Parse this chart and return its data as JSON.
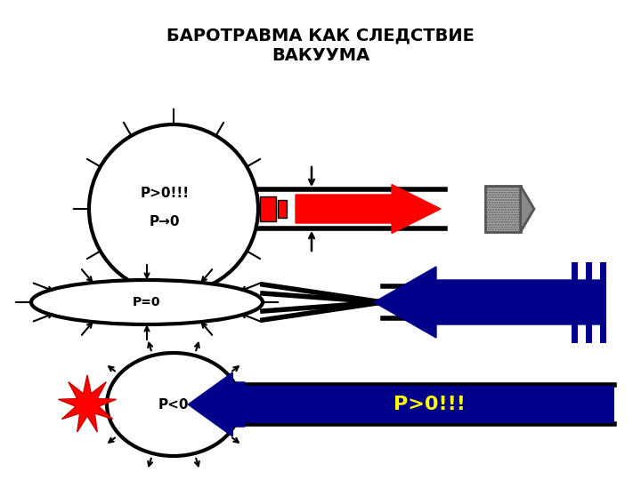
{
  "title_line1": "БАРОТРАВМА КАК СЛЕДСТВИЕ",
  "title_line2": "ВАКУУМА",
  "bg_color": "#ffffff",
  "title_color": "#000000",
  "title_fontsize": 14,
  "red_arrow_color": "#ff0000",
  "blue_arrow_color": "#00008b",
  "label1_top": "P>0!!!",
  "label1_bot": "P→0",
  "label2": "P=0",
  "label3": "P<0",
  "label4": "P>0!!!",
  "label4_color": "#ffff00"
}
